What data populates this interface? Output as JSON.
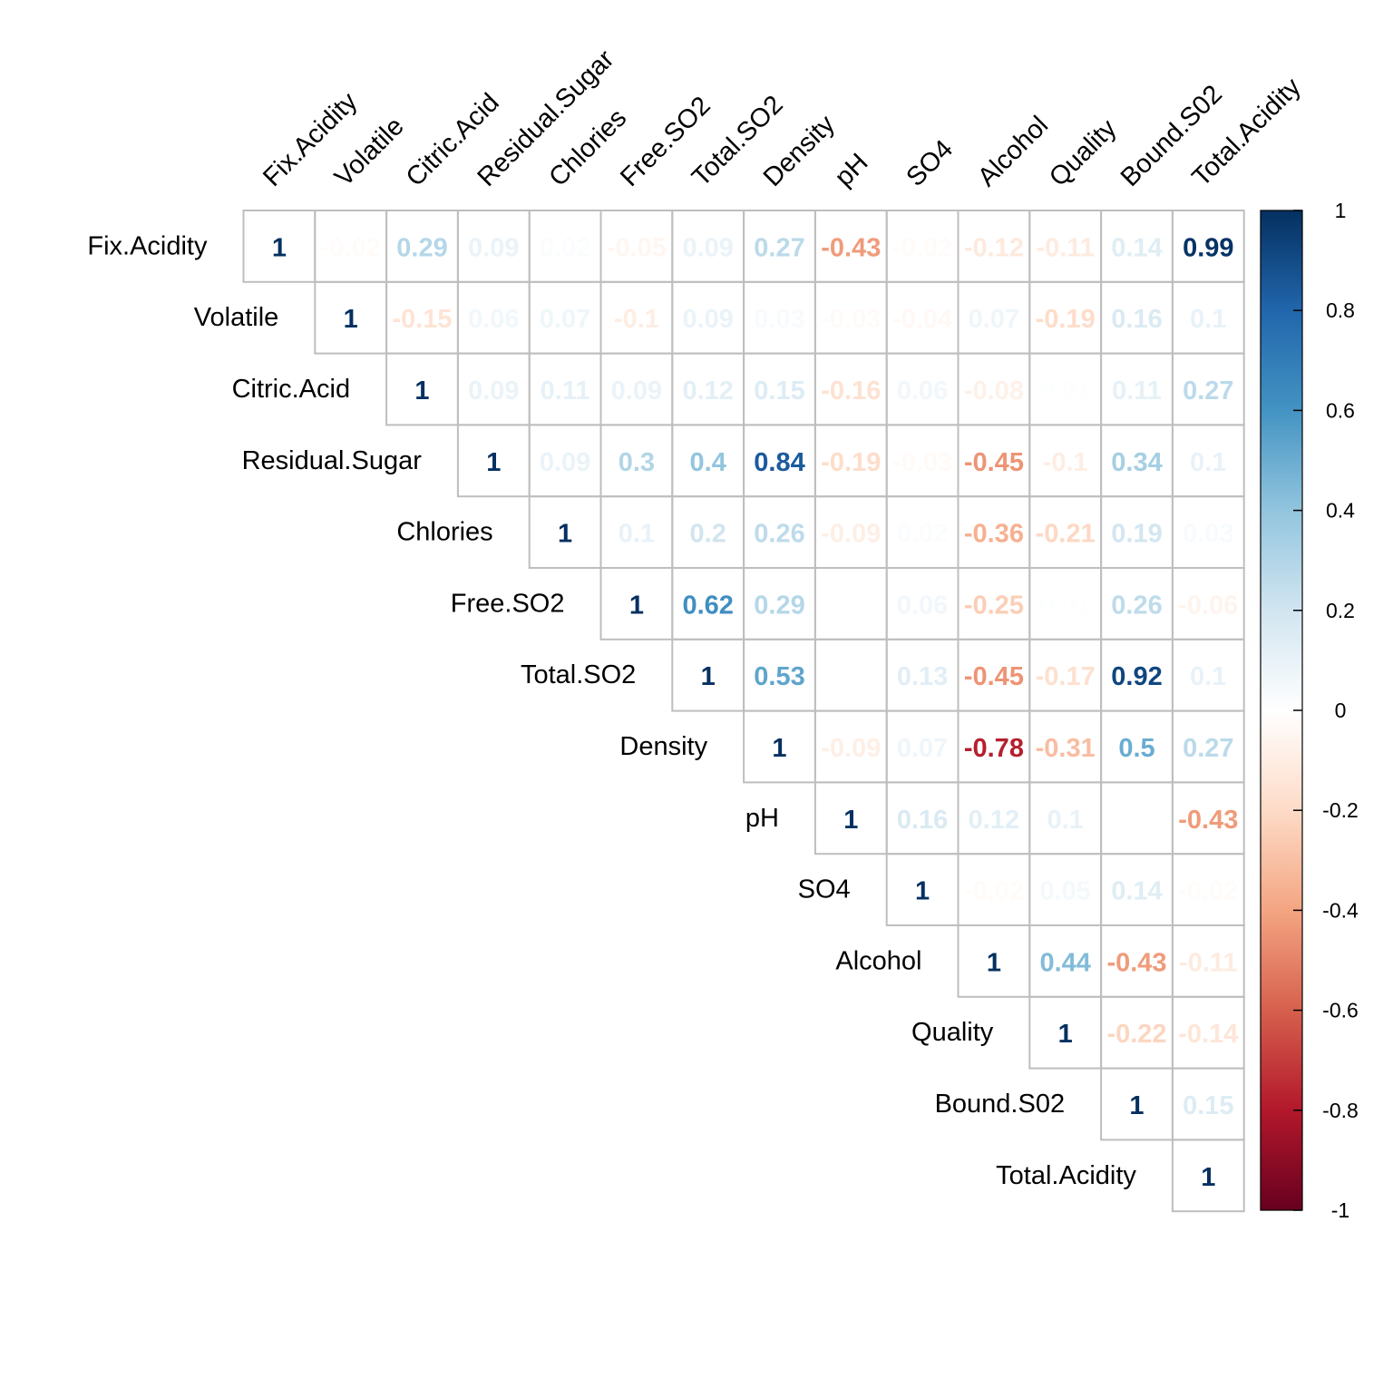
{
  "chart_data": {
    "type": "heatmap",
    "subtype": "correlation-matrix-upper",
    "variables": [
      "Fix.Acidity",
      "Volatile",
      "Citric.Acid",
      "Residual.Sugar",
      "Chlories",
      "Free.SO2",
      "Total.SO2",
      "Density",
      "pH",
      "SO4",
      "Alcohol",
      "Quality",
      "Bound.S02",
      "Total.Acidity"
    ],
    "labels": [
      "1",
      "-0.02",
      "0.29",
      "0.09",
      "0.02",
      "-0.05",
      "0.09",
      "0.27",
      "-0.43",
      "-0.02",
      "-0.12",
      "-0.11",
      "0.14",
      "0.99",
      "1",
      "-0.15",
      "0.06",
      "0.07",
      "-0.1",
      "0.09",
      "0.03",
      "-0.03",
      "-0.04",
      "0.07",
      "-0.19",
      "0.16",
      "0.1",
      "1",
      "0.09",
      "0.11",
      "0.09",
      "0.12",
      "0.15",
      "-0.16",
      "0.06",
      "-0.08",
      "0.01",
      "0.11",
      "0.27",
      "1",
      "0.09",
      "0.3",
      "0.4",
      "0.84",
      "-0.19",
      "-0.03",
      "-0.45",
      "-0.1",
      "0.34",
      "0.1",
      "1",
      "0.1",
      "0.2",
      "0.26",
      "-0.09",
      "0.02",
      "-0.36",
      "-0.21",
      "0.19",
      "0.03",
      "1",
      "0.62",
      "0.29",
      "0",
      "0.06",
      "-0.25",
      "0.01",
      "0.26",
      "-0.06",
      "1",
      "0.53",
      "0",
      "0.13",
      "-0.45",
      "-0.17",
      "0.92",
      "0.1",
      "1",
      "-0.09",
      "0.07",
      "-0.78",
      "-0.31",
      "0.5",
      "0.27",
      "1",
      "0.16",
      "0.12",
      "0.1",
      "0",
      "-0.43",
      "1",
      "-0.02",
      "0.05",
      "0.14",
      "-0.02",
      "1",
      "0.44",
      "-0.43",
      "-0.11",
      "1",
      "-0.22",
      "-0.14",
      "1",
      "0.15",
      "1"
    ],
    "colorbar": {
      "ticks": [
        "1",
        "0.8",
        "0.6",
        "0.4",
        "0.2",
        "0",
        "-0.2",
        "-0.4",
        "-0.6",
        "-0.8",
        "-1"
      ],
      "range": [
        -1,
        1
      ]
    },
    "colorscale": [
      "#67001F",
      "#B2182B",
      "#D6604D",
      "#F4A582",
      "#FDDBC7",
      "#FFFFFF",
      "#D1E5F0",
      "#92C5DE",
      "#4393C3",
      "#2166AC",
      "#053061"
    ],
    "grid_color": "#BEBEBE",
    "upper_triangle_only": true
  }
}
